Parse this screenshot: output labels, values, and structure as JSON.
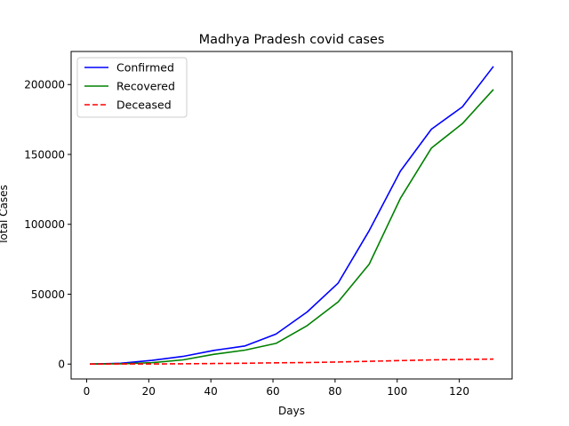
{
  "chart_data": {
    "type": "line",
    "title": "Madhya Pradesh covid cases",
    "xlabel": "Days",
    "ylabel": "Total Cases",
    "xlim": [
      -5,
      137
    ],
    "ylim": [
      -10650,
      223650
    ],
    "xticks": [
      0,
      20,
      40,
      60,
      80,
      100,
      120
    ],
    "yticks": [
      0,
      50000,
      100000,
      150000,
      200000
    ],
    "grid": false,
    "legend_position": "top-left",
    "x": [
      1,
      11,
      21,
      31,
      41,
      51,
      61,
      71,
      81,
      91,
      101,
      111,
      121,
      131
    ],
    "series": [
      {
        "name": "Confirmed",
        "color": "#0000ff",
        "style": "solid",
        "values": [
          0,
          600,
          2600,
          5500,
          9800,
          13000,
          21500,
          37300,
          58000,
          95500,
          138000,
          168000,
          184000,
          213000
        ]
      },
      {
        "name": "Recovered",
        "color": "#008000",
        "style": "solid",
        "values": [
          0,
          200,
          1000,
          3000,
          7000,
          10000,
          14800,
          27500,
          44500,
          71500,
          118500,
          154500,
          172000,
          196500
        ]
      },
      {
        "name": "Deceased",
        "color": "#ff0000",
        "style": "dashed",
        "values": [
          0,
          50,
          100,
          200,
          400,
          600,
          900,
          1100,
          1500,
          2000,
          2500,
          3000,
          3300,
          3600
        ]
      }
    ]
  }
}
